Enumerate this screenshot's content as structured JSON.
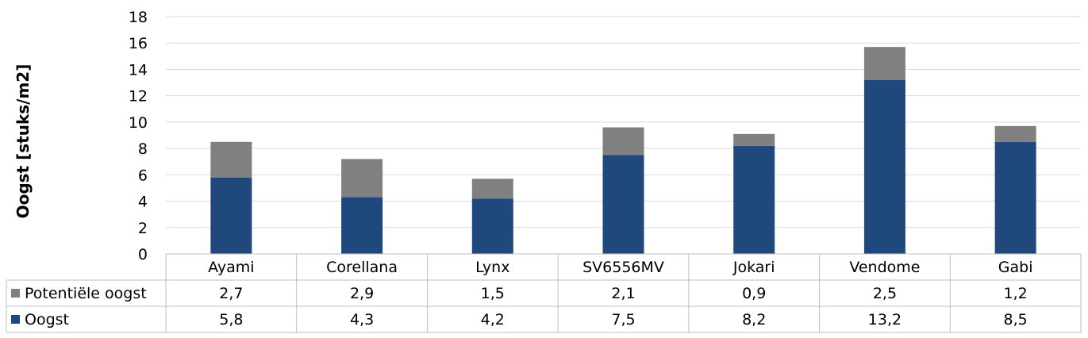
{
  "chart_data": {
    "type": "bar",
    "stacked": true,
    "ylabel": "Oogst [stuks/m2]",
    "ylim": [
      0,
      18
    ],
    "yticks": [
      "0",
      "2",
      "4",
      "6",
      "8",
      "10",
      "12",
      "14",
      "16",
      "18"
    ],
    "grid": true,
    "categories": [
      "Ayami",
      "Corellana",
      "Lynx",
      "SV6556MV",
      "Jokari",
      "Vendome",
      "Gabi"
    ],
    "series": [
      {
        "name": "Oogst",
        "color": "#1f497d",
        "values": [
          5.8,
          4.3,
          4.2,
          7.5,
          8.2,
          13.2,
          8.5
        ],
        "labels": [
          "5,8",
          "4,3",
          "4,2",
          "7,5",
          "8,2",
          "13,2",
          "8,5"
        ]
      },
      {
        "name": "Potentiële oogst",
        "color": "#808080",
        "values": [
          2.7,
          2.9,
          1.5,
          2.1,
          0.9,
          2.5,
          1.2
        ],
        "labels": [
          "2,7",
          "2,9",
          "1,5",
          "2,1",
          "0,9",
          "2,5",
          "1,2"
        ]
      }
    ],
    "data_table": true,
    "table_row_order": [
      "Potentiële oogst",
      "Oogst"
    ]
  }
}
